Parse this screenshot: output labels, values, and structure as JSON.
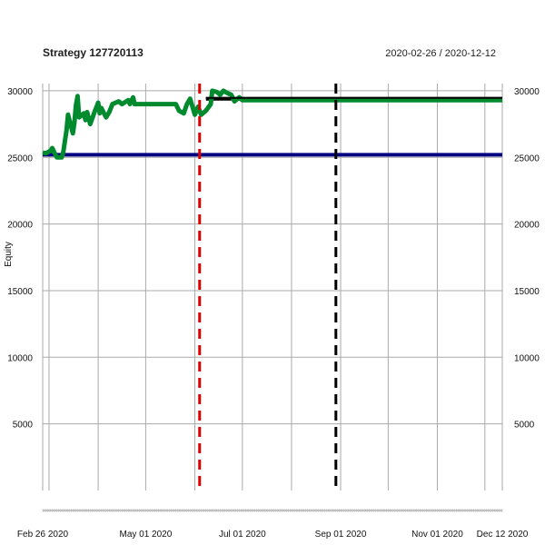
{
  "chart_data": {
    "type": "line",
    "title": "Strategy 127720113",
    "date_range": "2020-02-26 / 2020-12-12",
    "ylabel": "Equity",
    "ylim": [
      0,
      30000
    ],
    "yticks": [
      5000,
      10000,
      15000,
      20000,
      25000,
      30000
    ],
    "xlim": [
      "2020-02-26",
      "2020-12-12"
    ],
    "xticks": [
      {
        "date": "2020-02-26",
        "label": "Feb 26 2020"
      },
      {
        "date": "2020-05-01",
        "label": "May 01 2020"
      },
      {
        "date": "2020-07-01",
        "label": "Jul 01 2020"
      },
      {
        "date": "2020-09-01",
        "label": "Sep 01 2020"
      },
      {
        "date": "2020-11-01",
        "label": "Nov 01 2020"
      },
      {
        "date": "2020-12-12",
        "label": "Dec 12 2020"
      }
    ],
    "grid": true,
    "series": [
      {
        "color": "#008a2e",
        "points": [
          [
            "2020-02-26",
            25350
          ],
          [
            "2020-02-28",
            25300
          ],
          [
            "2020-03-02",
            25500
          ],
          [
            "2020-03-03",
            25700
          ],
          [
            "2020-03-05",
            25200
          ],
          [
            "2020-03-06",
            25000
          ],
          [
            "2020-03-09",
            25000
          ],
          [
            "2020-03-10",
            25400
          ],
          [
            "2020-03-11",
            26200
          ],
          [
            "2020-03-12",
            27000
          ],
          [
            "2020-03-13",
            28200
          ],
          [
            "2020-03-16",
            26800
          ],
          [
            "2020-03-17",
            27600
          ],
          [
            "2020-03-18",
            28900
          ],
          [
            "2020-03-19",
            29600
          ],
          [
            "2020-03-20",
            28000
          ],
          [
            "2020-03-23",
            28300
          ],
          [
            "2020-03-24",
            27800
          ],
          [
            "2020-03-25",
            28400
          ],
          [
            "2020-03-27",
            27500
          ],
          [
            "2020-03-30",
            28500
          ],
          [
            "2020-04-01",
            29100
          ],
          [
            "2020-04-02",
            28300
          ],
          [
            "2020-04-03",
            28700
          ],
          [
            "2020-04-06",
            28000
          ],
          [
            "2020-04-08",
            28400
          ],
          [
            "2020-04-10",
            29000
          ],
          [
            "2020-04-14",
            29200
          ],
          [
            "2020-04-16",
            29000
          ],
          [
            "2020-04-20",
            29300
          ],
          [
            "2020-04-21",
            29000
          ],
          [
            "2020-04-23",
            29500
          ],
          [
            "2020-04-24",
            29000
          ],
          [
            "2020-04-27",
            29000
          ],
          [
            "2020-05-05",
            29000
          ],
          [
            "2020-05-10",
            29000
          ],
          [
            "2020-05-15",
            29000
          ],
          [
            "2020-05-20",
            29000
          ],
          [
            "2020-05-22",
            28500
          ],
          [
            "2020-05-25",
            28300
          ],
          [
            "2020-05-27",
            29000
          ],
          [
            "2020-05-29",
            29400
          ],
          [
            "2020-06-01",
            28200
          ],
          [
            "2020-06-03",
            28800
          ],
          [
            "2020-06-05",
            28200
          ],
          [
            "2020-06-08",
            28500
          ],
          [
            "2020-06-11",
            29000
          ],
          [
            "2020-06-12",
            30000
          ],
          [
            "2020-06-15",
            29900
          ],
          [
            "2020-06-17",
            29700
          ],
          [
            "2020-06-19",
            30000
          ],
          [
            "2020-06-22",
            29800
          ],
          [
            "2020-06-24",
            29700
          ],
          [
            "2020-06-26",
            29200
          ],
          [
            "2020-06-29",
            29500
          ],
          [
            "2020-07-01",
            29300
          ],
          [
            "2020-07-10",
            29300
          ],
          [
            "2020-08-01",
            29300
          ],
          [
            "2020-09-01",
            29300
          ],
          [
            "2020-10-01",
            29300
          ],
          [
            "2020-11-01",
            29300
          ],
          [
            "2020-12-12",
            29300
          ]
        ]
      }
    ],
    "reference_lines": [
      {
        "kind": "horizontal",
        "y": 25200,
        "color": "#000080",
        "style": "solid"
      },
      {
        "kind": "horizontal",
        "y": 29400,
        "color": "#000000",
        "style": "solid",
        "from": "2020-06-08"
      },
      {
        "kind": "vertical",
        "x": "2020-06-04",
        "color": "#dd0000",
        "style": "dashed"
      },
      {
        "kind": "vertical",
        "x": "2020-08-29",
        "color": "#000000",
        "style": "dashed"
      }
    ]
  }
}
